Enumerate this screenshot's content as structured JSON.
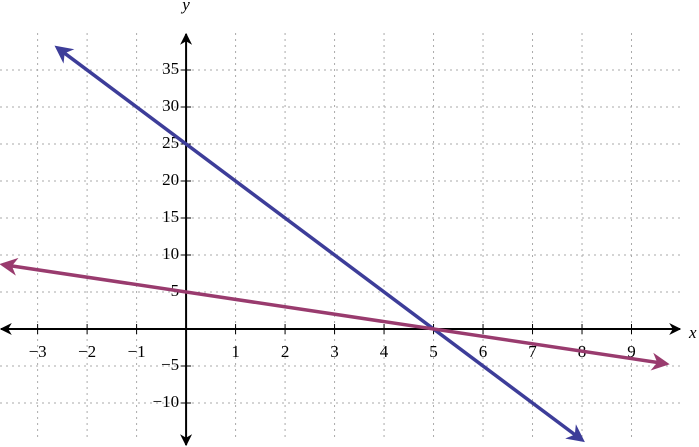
{
  "chart_data": {
    "type": "line",
    "x_label": "x",
    "y_label": "y",
    "xlim": [
      -3.76,
      10
    ],
    "ylim": [
      -15,
      40
    ],
    "xticks": [
      {
        "value": -3,
        "label": "−3"
      },
      {
        "value": -2,
        "label": "−2"
      },
      {
        "value": -1,
        "label": "−1"
      },
      1,
      2,
      3,
      4,
      5,
      6,
      7,
      8,
      9
    ],
    "yticks": [
      {
        "value": -10,
        "label": "−10"
      },
      {
        "value": -5,
        "label": "−5"
      },
      5,
      10,
      15,
      20,
      25,
      30,
      35
    ],
    "grid": true,
    "series": [
      {
        "color": "#3d3d99",
        "x": [
          -2.6,
          8
        ],
        "values": [
          38,
          -15
        ]
      },
      {
        "color": "#993b6e",
        "x": [
          -3.7,
          9.7
        ],
        "values": [
          8.7,
          -4.7
        ]
      }
    ]
  }
}
